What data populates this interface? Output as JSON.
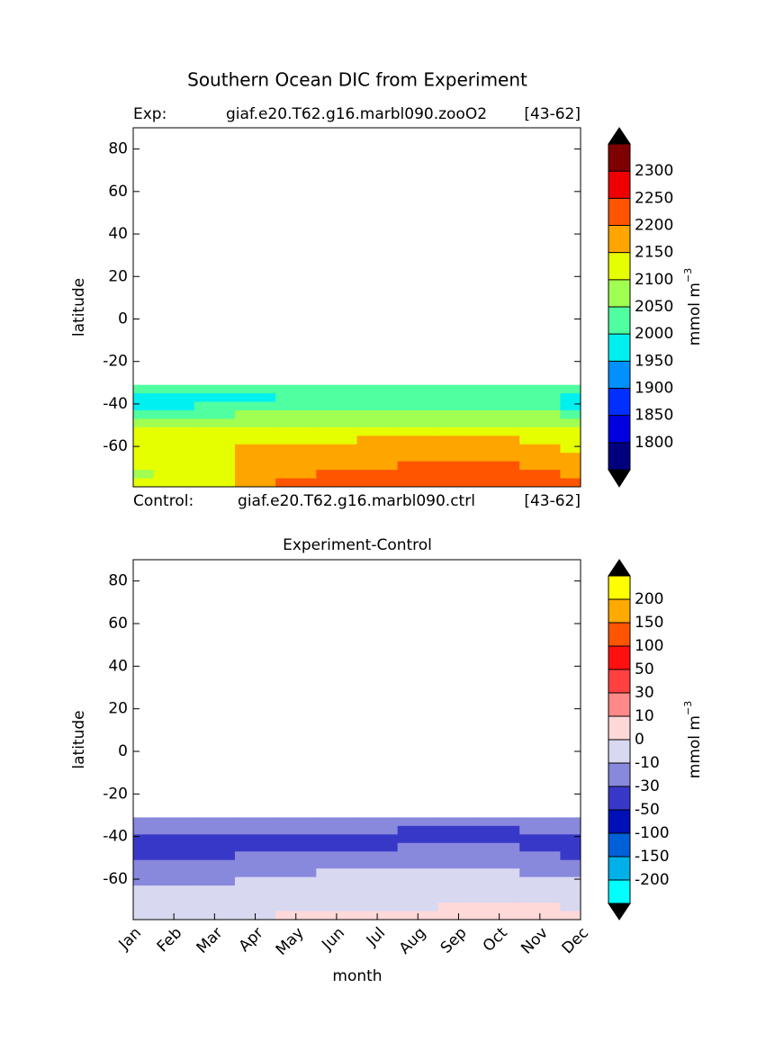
{
  "figure_title": "Southern Ocean DIC from Experiment",
  "chart_data": [
    {
      "type": "contour",
      "annotations": {
        "exp_label": "Exp:",
        "exp_name": "giaf.e20.T62.g16.marbl090.zooO2",
        "exp_years": "[43-62]",
        "ctrl_label": "Control:",
        "ctrl_name": "giaf.e20.T62.g16.marbl090.ctrl",
        "ctrl_years": "[43-62]"
      },
      "y_label": "latitude",
      "x": [
        1,
        2,
        3,
        4,
        5,
        6,
        7,
        8,
        9,
        10,
        11,
        12
      ],
      "xlim": [
        1,
        12
      ],
      "y": [
        -33,
        -37,
        -41,
        -45,
        -49,
        -53,
        -57,
        -61,
        -65,
        -69,
        -73,
        -77
      ],
      "ylim": [
        -79,
        90
      ],
      "yticks": [
        -60,
        -40,
        -20,
        0,
        20,
        40,
        60,
        80
      ],
      "z": [
        [
          2030,
          2030,
          2030,
          2030,
          2030,
          2030,
          2030,
          2030,
          2030,
          2030,
          2030,
          2030
        ],
        [
          1980,
          1980,
          1980,
          1980,
          2010,
          2030,
          2030,
          2030,
          2030,
          2030,
          2010,
          1980
        ],
        [
          1995,
          1995,
          2010,
          2020,
          2030,
          2030,
          2030,
          2030,
          2030,
          2030,
          2020,
          1990
        ],
        [
          2040,
          2040,
          2040,
          2060,
          2070,
          2075,
          2080,
          2080,
          2080,
          2075,
          2060,
          2040
        ],
        [
          2070,
          2075,
          2080,
          2085,
          2090,
          2095,
          2095,
          2095,
          2095,
          2090,
          2085,
          2075
        ],
        [
          2110,
          2110,
          2115,
          2120,
          2120,
          2125,
          2130,
          2135,
          2140,
          2130,
          2120,
          2115
        ],
        [
          2120,
          2120,
          2125,
          2130,
          2135,
          2145,
          2155,
          2160,
          2160,
          2155,
          2140,
          2125
        ],
        [
          2120,
          2125,
          2130,
          2155,
          2165,
          2170,
          2180,
          2185,
          2185,
          2175,
          2165,
          2145
        ],
        [
          2120,
          2125,
          2130,
          2160,
          2175,
          2185,
          2190,
          2195,
          2195,
          2185,
          2180,
          2170
        ],
        [
          2115,
          2120,
          2140,
          2165,
          2180,
          2190,
          2195,
          2210,
          2215,
          2210,
          2190,
          2180
        ],
        [
          2095,
          2100,
          2135,
          2170,
          2190,
          2205,
          2210,
          2215,
          2220,
          2215,
          2200,
          2190
        ],
        [
          2125,
          2130,
          2145,
          2180,
          2205,
          2210,
          2215,
          2220,
          2220,
          2215,
          2210,
          2205
        ]
      ],
      "colorbar": {
        "levels": [
          1800,
          1850,
          1900,
          1950,
          2000,
          2050,
          2100,
          2150,
          2200,
          2250,
          2300
        ],
        "colors": [
          "#00007f",
          "#0000e0",
          "#0030ff",
          "#0090ff",
          "#00f0f0",
          "#50ffa0",
          "#a0ff50",
          "#e6ff00",
          "#ffa500",
          "#ff5500",
          "#ee0000",
          "#7f0000"
        ],
        "extend_color": "#000000",
        "label": {
          "base": "mmol m",
          "superscript": "−3"
        }
      }
    },
    {
      "type": "contour",
      "title": "Experiment-Control",
      "y_label": "latitude",
      "x_label": "month",
      "categories": [
        "Jan",
        "Feb",
        "Mar",
        "Apr",
        "May",
        "Jun",
        "Jul",
        "Aug",
        "Sep",
        "Oct",
        "Nov",
        "Dec"
      ],
      "y": [
        -33,
        -37,
        -41,
        -45,
        -49,
        -53,
        -57,
        -61,
        -65,
        -69,
        -73,
        -77
      ],
      "ylim": [
        -79,
        90
      ],
      "yticks": [
        -60,
        -40,
        -20,
        0,
        20,
        40,
        60,
        80
      ],
      "z": [
        [
          -20,
          -20,
          -20,
          -20,
          -20,
          -20,
          -20,
          -20,
          -20,
          -20,
          -20,
          -20
        ],
        [
          -25,
          -25,
          -25,
          -25,
          -25,
          -25,
          -25,
          -35,
          -40,
          -35,
          -25,
          -25
        ],
        [
          -40,
          -40,
          -40,
          -40,
          -40,
          -40,
          -40,
          -40,
          -40,
          -40,
          -40,
          -40
        ],
        [
          -40,
          -40,
          -40,
          -40,
          -40,
          -40,
          -40,
          -25,
          -28,
          -30,
          -40,
          -40
        ],
        [
          -40,
          -40,
          -35,
          -28,
          -25,
          -20,
          -20,
          -20,
          -20,
          -20,
          -25,
          -35
        ],
        [
          -20,
          -20,
          -20,
          -20,
          -20,
          -20,
          -20,
          -20,
          -20,
          -20,
          -20,
          -20
        ],
        [
          -20,
          -20,
          -20,
          -20,
          -15,
          -5,
          -5,
          -5,
          -5,
          -8,
          -15,
          -15
        ],
        [
          -15,
          -20,
          -15,
          -5,
          -5,
          -5,
          -5,
          -5,
          -5,
          -5,
          -5,
          -5
        ],
        [
          -5,
          -5,
          -5,
          -5,
          -5,
          -5,
          -5,
          -5,
          -5,
          -5,
          -5,
          -5
        ],
        [
          -5,
          -5,
          -5,
          -5,
          -5,
          -5,
          -5,
          -5,
          -5,
          -5,
          -5,
          -5
        ],
        [
          -5,
          -5,
          -5,
          -5,
          -5,
          -5,
          -5,
          -5,
          5,
          5,
          5,
          -5
        ],
        [
          -5,
          -5,
          -5,
          -5,
          5,
          5,
          5,
          5,
          5,
          5,
          5,
          5
        ]
      ],
      "colorbar": {
        "levels": [
          -200,
          -150,
          -100,
          -50,
          -30,
          -10,
          0,
          10,
          30,
          50,
          100,
          150,
          200
        ],
        "colors": [
          "#00ffff",
          "#00b0e8",
          "#0060d8",
          "#0010b8",
          "#3838c8",
          "#8888dd",
          "#d8d8f0",
          "#ffd8d8",
          "#ff8888",
          "#ff4040",
          "#ff1010",
          "#ff5500",
          "#ffaa00",
          "#ffff00"
        ],
        "extend_color": "#000000",
        "label": {
          "base": "mmol m",
          "superscript": "−3"
        }
      }
    }
  ]
}
